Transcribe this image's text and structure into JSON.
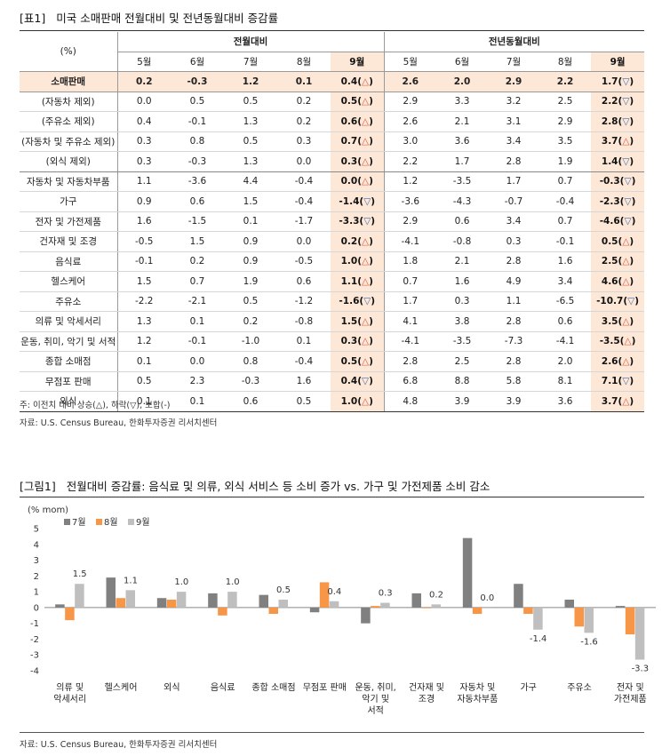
{
  "table": {
    "tag": "[표1]",
    "title": "미국 소매판매 전월대비 및 전년동월대비 증감률",
    "unit": "(%)",
    "group_mom": "전월대비",
    "group_yoy": "전년동월대비",
    "months": [
      "5월",
      "6월",
      "7월",
      "8월",
      "9월"
    ],
    "rows": [
      {
        "label": "소매판매",
        "mom": [
          "0.2",
          "-0.3",
          "1.2",
          "0.1",
          "0.4"
        ],
        "mom_sym": "△",
        "yoy": [
          "2.6",
          "2.0",
          "2.9",
          "2.2",
          "1.7"
        ],
        "yoy_sym": "▽"
      },
      {
        "label": "(자동차 제외)",
        "mom": [
          "0.0",
          "0.5",
          "0.5",
          "0.2",
          "0.5"
        ],
        "mom_sym": "△",
        "yoy": [
          "2.9",
          "3.3",
          "3.2",
          "2.5",
          "2.2"
        ],
        "yoy_sym": "▽"
      },
      {
        "label": "(주유소 제외)",
        "mom": [
          "0.4",
          "-0.1",
          "1.3",
          "0.2",
          "0.6"
        ],
        "mom_sym": "△",
        "yoy": [
          "2.6",
          "2.1",
          "3.1",
          "2.9",
          "2.8"
        ],
        "yoy_sym": "▽"
      },
      {
        "label": "(자동차 및 주유소 제외)",
        "mom": [
          "0.3",
          "0.8",
          "0.5",
          "0.3",
          "0.7"
        ],
        "mom_sym": "△",
        "yoy": [
          "3.0",
          "3.6",
          "3.4",
          "3.5",
          "3.7"
        ],
        "yoy_sym": "△"
      },
      {
        "label": "(외식 제외)",
        "mom": [
          "0.3",
          "-0.3",
          "1.3",
          "0.0",
          "0.3"
        ],
        "mom_sym": "△",
        "yoy": [
          "2.2",
          "1.7",
          "2.8",
          "1.9",
          "1.4"
        ],
        "yoy_sym": "▽"
      },
      {
        "label": "자동차 및 자동차부품",
        "mom": [
          "1.1",
          "-3.6",
          "4.4",
          "-0.4",
          "0.0"
        ],
        "mom_sym": "△",
        "yoy": [
          "1.2",
          "-3.5",
          "1.7",
          "0.7",
          "-0.3"
        ],
        "yoy_sym": "▽"
      },
      {
        "label": "가구",
        "mom": [
          "0.9",
          "0.6",
          "1.5",
          "-0.4",
          "-1.4"
        ],
        "mom_sym": "▽",
        "yoy": [
          "-3.6",
          "-4.3",
          "-0.7",
          "-0.4",
          "-2.3"
        ],
        "yoy_sym": "▽"
      },
      {
        "label": "전자 및 가전제품",
        "mom": [
          "1.6",
          "-1.5",
          "0.1",
          "-1.7",
          "-3.3"
        ],
        "mom_sym": "▽",
        "yoy": [
          "2.9",
          "0.6",
          "3.4",
          "0.7",
          "-4.6"
        ],
        "yoy_sym": "▽"
      },
      {
        "label": "건자재 및 조경",
        "mom": [
          "-0.5",
          "1.5",
          "0.9",
          "0.0",
          "0.2"
        ],
        "mom_sym": "△",
        "yoy": [
          "-4.1",
          "-0.8",
          "0.3",
          "-0.1",
          "0.5"
        ],
        "yoy_sym": "△"
      },
      {
        "label": "음식료",
        "mom": [
          "-0.1",
          "0.2",
          "0.9",
          "-0.5",
          "1.0"
        ],
        "mom_sym": "△",
        "yoy": [
          "1.8",
          "2.1",
          "2.8",
          "1.6",
          "2.5"
        ],
        "yoy_sym": "△"
      },
      {
        "label": "헬스케어",
        "mom": [
          "1.5",
          "0.7",
          "1.9",
          "0.6",
          "1.1"
        ],
        "mom_sym": "△",
        "yoy": [
          "0.7",
          "1.6",
          "4.9",
          "3.4",
          "4.6"
        ],
        "yoy_sym": "△"
      },
      {
        "label": "주유소",
        "mom": [
          "-2.2",
          "-2.1",
          "0.5",
          "-1.2",
          "-1.6"
        ],
        "mom_sym": "▽",
        "yoy": [
          "1.7",
          "0.3",
          "1.1",
          "-6.5",
          "-10.7"
        ],
        "yoy_sym": "▽"
      },
      {
        "label": "의류 및 악세서리",
        "mom": [
          "1.3",
          "0.1",
          "0.2",
          "-0.8",
          "1.5"
        ],
        "mom_sym": "△",
        "yoy": [
          "4.1",
          "3.8",
          "2.8",
          "0.6",
          "3.5"
        ],
        "yoy_sym": "△"
      },
      {
        "label": "운동, 취미, 악기 및 서적",
        "mom": [
          "1.2",
          "-0.1",
          "-1.0",
          "0.1",
          "0.3"
        ],
        "mom_sym": "△",
        "yoy": [
          "-4.1",
          "-3.5",
          "-7.3",
          "-4.1",
          "-3.5"
        ],
        "yoy_sym": "△"
      },
      {
        "label": "종합 소매점",
        "mom": [
          "0.1",
          "0.0",
          "0.8",
          "-0.4",
          "0.5"
        ],
        "mom_sym": "△",
        "yoy": [
          "2.8",
          "2.5",
          "2.8",
          "2.0",
          "2.6"
        ],
        "yoy_sym": "△"
      },
      {
        "label": "무점포 판매",
        "mom": [
          "0.5",
          "2.3",
          "-0.3",
          "1.6",
          "0.4"
        ],
        "mom_sym": "▽",
        "yoy": [
          "6.8",
          "8.8",
          "5.8",
          "8.1",
          "7.1"
        ],
        "yoy_sym": "▽"
      },
      {
        "label": "외식",
        "mom": [
          "0.1",
          "0.1",
          "0.6",
          "0.5",
          "1.0"
        ],
        "mom_sym": "△",
        "yoy": [
          "4.8",
          "3.9",
          "3.9",
          "3.6",
          "3.7"
        ],
        "yoy_sym": "△"
      }
    ],
    "note": "주: 이전치 대비 상승(△), 하락(▽), 보합(-)",
    "source": "자료: U.S. Census Bureau, 한화투자증권 리서치센터"
  },
  "chart_data": {
    "tag": "[그림1]",
    "title": "전월대비 증감률: 음식료 및 의류, 외식 서비스 등 소비 증가 vs. 가구 및 가전제품 소비 감소",
    "type": "bar",
    "ylabel": "(% mom)",
    "ylim": [
      -4,
      5
    ],
    "yticks": [
      -4,
      -3,
      -2,
      -1,
      0,
      1,
      2,
      3,
      4,
      5
    ],
    "categories": [
      [
        "의류 및",
        "악세서리"
      ],
      [
        "헬스케어"
      ],
      [
        "외식"
      ],
      [
        "음식료"
      ],
      [
        "종합 소매점"
      ],
      [
        "무점포 판매"
      ],
      [
        "운동, 취미,",
        "악기 및",
        "서적"
      ],
      [
        "건자재 및",
        "조경"
      ],
      [
        "자동차 및",
        "자동차부품"
      ],
      [
        "가구"
      ],
      [
        "주유소"
      ],
      [
        "전자 및",
        "가전제품"
      ]
    ],
    "series": [
      {
        "name": "7월",
        "color": "#808080",
        "values": [
          0.2,
          1.9,
          0.6,
          0.9,
          0.8,
          -0.3,
          -1.0,
          0.9,
          4.4,
          1.5,
          0.5,
          0.1
        ]
      },
      {
        "name": "8월",
        "color": "#f79646",
        "values": [
          -0.8,
          0.6,
          0.5,
          -0.5,
          -0.4,
          1.6,
          0.1,
          0.0,
          -0.4,
          -0.4,
          -1.2,
          -1.7
        ]
      },
      {
        "name": "9월",
        "color": "#bfbfbf",
        "values": [
          1.5,
          1.1,
          1.0,
          1.0,
          0.5,
          0.4,
          0.3,
          0.2,
          0.0,
          -1.4,
          -1.6,
          -3.3
        ]
      }
    ],
    "data_labels": [
      "1.5",
      "1.1",
      "1.0",
      "1.0",
      "0.5",
      "0.4",
      "0.3",
      "0.2",
      "0.0",
      "-1.4",
      "-1.6",
      "-3.3"
    ],
    "source": "자료: U.S. Census Bureau, 한화투자증권 리서치센터"
  }
}
